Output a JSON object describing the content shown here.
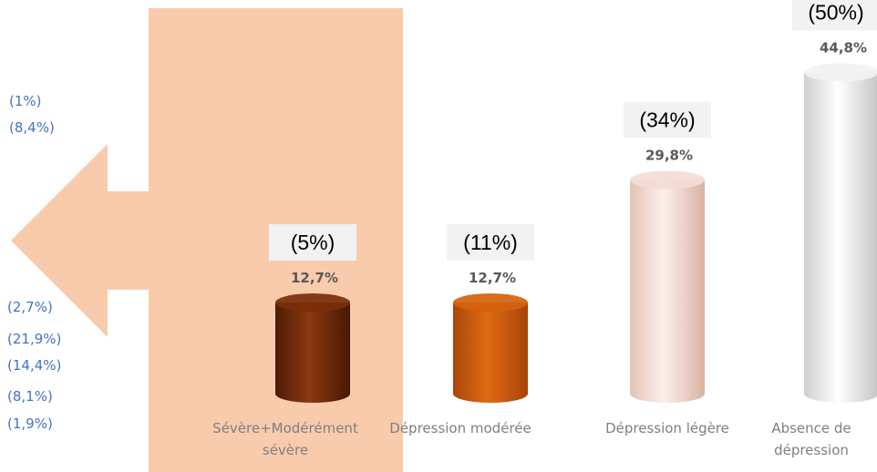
{
  "chart_data": {
    "type": "bar",
    "categories": [
      [
        "Sévère+Modérément",
        "sévère"
      ],
      [
        "Dépression modérée"
      ],
      [
        "Dépression légère"
      ],
      [
        "Absence de",
        "dépression"
      ]
    ],
    "values": [
      12.7,
      12.7,
      29.8,
      44.8
    ],
    "value_labels": [
      "12,7%",
      "12,7%",
      "29,8%",
      "44,8%"
    ],
    "comparison_labels": [
      "(5%)",
      "(11%)",
      "(34%)",
      "(50%)"
    ],
    "side_labels_top": [
      "(1%)",
      "(8,4%)"
    ],
    "side_labels_bottom": [
      "(2,7%)",
      "(21,9%)",
      "(14,4%)",
      "(8,1%)",
      "(1,9%)"
    ],
    "ylim": [
      0,
      50
    ],
    "grid": false,
    "legend": "none",
    "colors": {
      "bars": [
        "#7a2e09",
        "#d4620e",
        "#f3ddd2",
        "#f2f2f2"
      ],
      "highlight": "#f8cbad",
      "value_label": "#595959",
      "category_label": "#7f7f7f",
      "side_label": "#4472c4",
      "comparison_box": "#f2f2f2"
    }
  }
}
